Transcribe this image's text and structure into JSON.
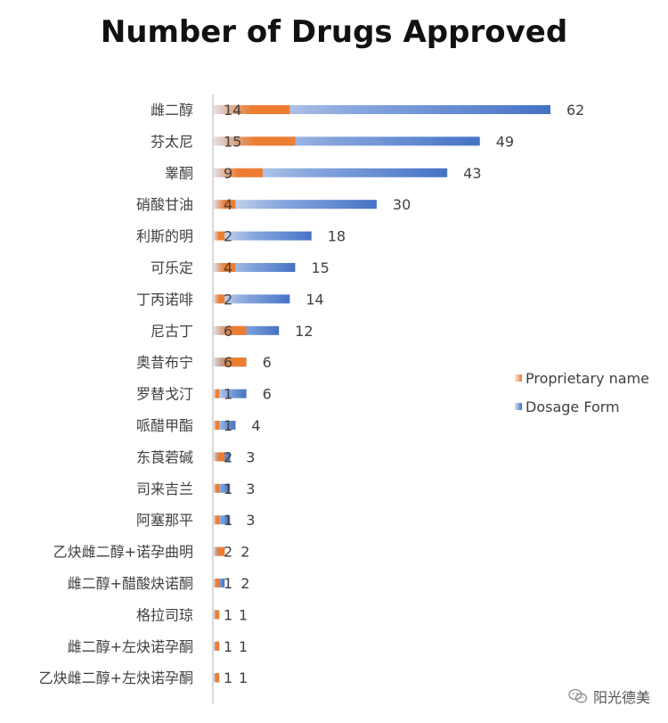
{
  "chart_data": {
    "type": "bar",
    "orientation": "horizontal",
    "title": "Number of Drugs Approved",
    "categories": [
      "雌二醇",
      "芬太尼",
      "睾酮",
      "硝酸甘油",
      "利斯的明",
      "可乐定",
      "丁丙诺啡",
      "尼古丁",
      "奥昔布宁",
      "罗替戈汀",
      "哌醋甲酯",
      "东莨菪碱",
      "司来吉兰",
      "阿塞那平",
      "乙炔雌二醇+诺孕曲明",
      "雌二醇+醋酸炔诺酮",
      "格拉司琼",
      "雌二醇+左炔诺孕酮",
      "乙炔雌二醇+左炔诺孕酮"
    ],
    "series": [
      {
        "name": "Proprietary name",
        "values": [
          14,
          15,
          9,
          4,
          2,
          4,
          2,
          6,
          6,
          1,
          1,
          2,
          1,
          1,
          2,
          1,
          1,
          1,
          1
        ],
        "color": "#ED7D31"
      },
      {
        "name": "Dosage Form",
        "values": [
          62,
          49,
          43,
          30,
          18,
          15,
          14,
          12,
          6,
          6,
          4,
          3,
          3,
          3,
          2,
          2,
          1,
          1,
          1
        ],
        "color": "#4472C4"
      }
    ],
    "xlim": [
      0,
      62
    ],
    "grid": false,
    "legend_position": "right"
  },
  "watermark": {
    "icon": "wechat-icon",
    "text": "阳光德美"
  }
}
